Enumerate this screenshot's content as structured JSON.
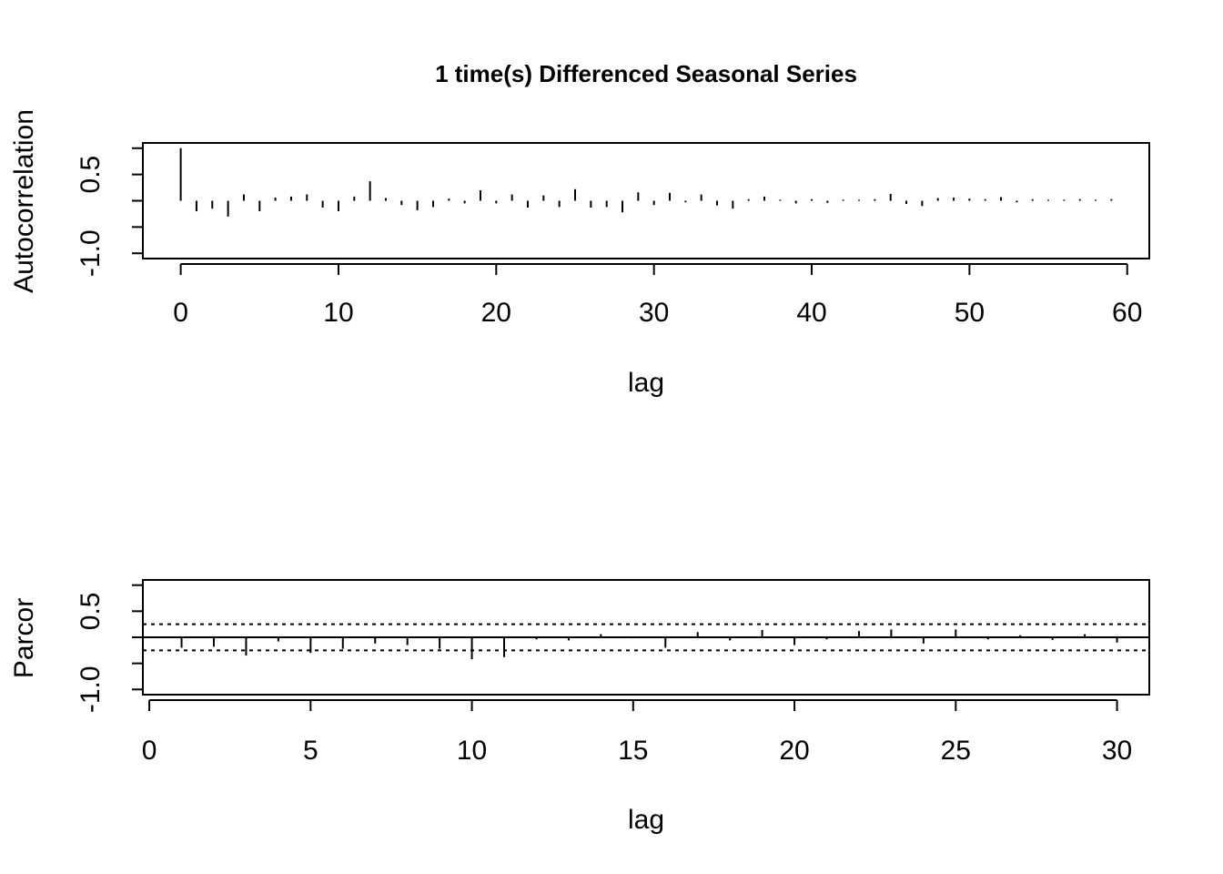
{
  "title": "1 time(s) Differenced Seasonal Series",
  "chart_data": [
    {
      "type": "bar",
      "name": "acf",
      "xlabel": "lag",
      "ylabel": "Autocorrelation",
      "xlim": [
        -2.4,
        61.4
      ],
      "ylim": [
        -1.1,
        1.1
      ],
      "xticks": [
        0,
        10,
        20,
        30,
        40,
        50,
        60
      ],
      "yticks": [
        -1.0,
        -0.5,
        0.0,
        0.5,
        1.0
      ],
      "ytick_labels": [
        "-1.0",
        "",
        "",
        "0.5",
        ""
      ],
      "x": [
        0,
        1,
        2,
        3,
        4,
        5,
        6,
        7,
        8,
        9,
        10,
        11,
        12,
        13,
        14,
        15,
        16,
        17,
        18,
        19,
        20,
        21,
        22,
        23,
        24,
        25,
        26,
        27,
        28,
        29,
        30,
        31,
        32,
        33,
        34,
        35,
        36,
        37,
        38,
        39,
        40,
        41,
        42,
        43,
        44,
        45,
        46,
        47,
        48,
        49,
        50,
        51,
        52,
        53,
        54,
        55,
        56,
        57,
        58,
        59
      ],
      "values": [
        1.0,
        -0.2,
        -0.15,
        -0.3,
        0.12,
        -0.2,
        0.06,
        0.08,
        0.12,
        -0.13,
        -0.2,
        0.08,
        0.37,
        0.05,
        -0.08,
        -0.18,
        -0.12,
        0.04,
        -0.05,
        0.2,
        -0.05,
        0.12,
        -0.13,
        0.1,
        -0.12,
        0.22,
        -0.13,
        -0.12,
        -0.22,
        0.16,
        -0.08,
        0.15,
        -0.03,
        0.12,
        -0.09,
        -0.15,
        0.03,
        0.08,
        0.02,
        -0.05,
        0.03,
        -0.04,
        0.02,
        0.02,
        0.03,
        0.13,
        -0.06,
        -0.1,
        0.05,
        0.06,
        0.04,
        0.03,
        0.07,
        -0.03,
        0.03,
        0.02,
        0.02,
        0.03,
        0.02,
        0.03
      ],
      "grid": false
    },
    {
      "type": "bar",
      "name": "pacf",
      "xlabel": "lag",
      "ylabel": "Parcor",
      "xlim": [
        -0.2,
        31.0
      ],
      "ylim": [
        -1.1,
        1.1
      ],
      "xticks": [
        0,
        5,
        10,
        15,
        20,
        25,
        30
      ],
      "yticks": [
        -1.0,
        -0.5,
        0.0,
        0.5,
        1.0
      ],
      "ytick_labels": [
        "-1.0",
        "",
        "",
        "0.5",
        ""
      ],
      "x": [
        1,
        2,
        3,
        4,
        5,
        6,
        7,
        8,
        9,
        10,
        11,
        12,
        13,
        14,
        15,
        16,
        17,
        18,
        19,
        20,
        21,
        22,
        23,
        24,
        25,
        26,
        27,
        28,
        29,
        30
      ],
      "values": [
        -0.2,
        -0.18,
        -0.35,
        -0.08,
        -0.3,
        -0.22,
        -0.12,
        -0.15,
        -0.22,
        -0.42,
        -0.38,
        -0.04,
        -0.06,
        0.06,
        -0.02,
        -0.2,
        0.1,
        -0.06,
        0.14,
        -0.15,
        -0.04,
        0.12,
        0.15,
        -0.12,
        0.15,
        -0.04,
        0.04,
        -0.05,
        0.06,
        -0.1
      ],
      "ci": [
        -0.25,
        0.25
      ],
      "grid": false
    }
  ]
}
